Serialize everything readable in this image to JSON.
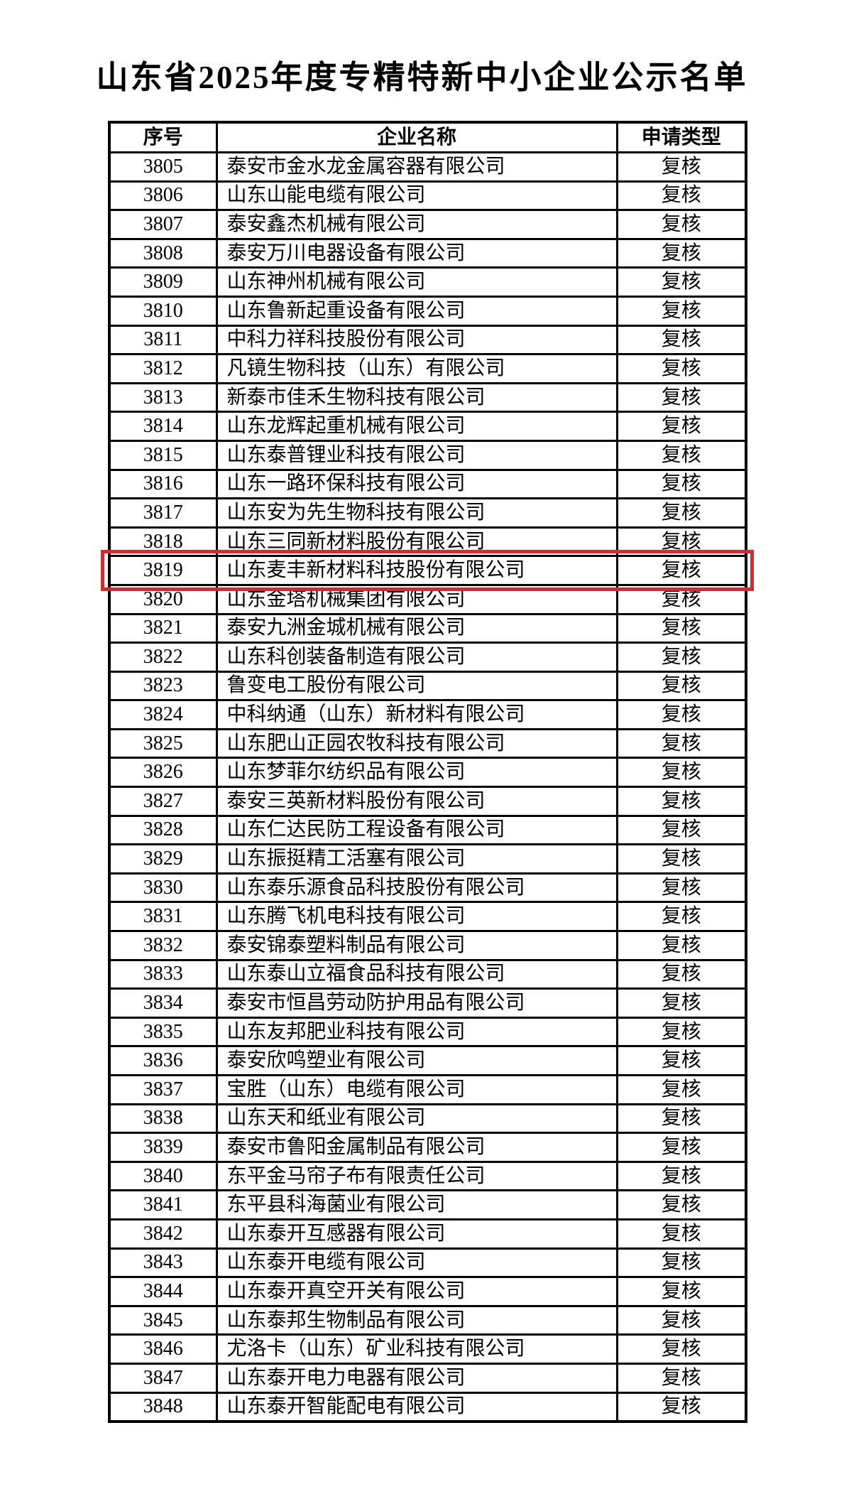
{
  "title": "山东省2025年度专精特新中小企业公示名单",
  "table": {
    "headers": {
      "no": "序号",
      "name": "企业名称",
      "type": "申请类型"
    },
    "rows": [
      {
        "no": "3805",
        "name": "泰安市金水龙金属容器有限公司",
        "type": "复核"
      },
      {
        "no": "3806",
        "name": "山东山能电缆有限公司",
        "type": "复核"
      },
      {
        "no": "3807",
        "name": "泰安鑫杰机械有限公司",
        "type": "复核"
      },
      {
        "no": "3808",
        "name": "泰安万川电器设备有限公司",
        "type": "复核"
      },
      {
        "no": "3809",
        "name": "山东神州机械有限公司",
        "type": "复核"
      },
      {
        "no": "3810",
        "name": "山东鲁新起重设备有限公司",
        "type": "复核"
      },
      {
        "no": "3811",
        "name": "中科力祥科技股份有限公司",
        "type": "复核"
      },
      {
        "no": "3812",
        "name": "凡镜生物科技（山东）有限公司",
        "type": "复核"
      },
      {
        "no": "3813",
        "name": "新泰市佳禾生物科技有限公司",
        "type": "复核"
      },
      {
        "no": "3814",
        "name": "山东龙辉起重机械有限公司",
        "type": "复核"
      },
      {
        "no": "3815",
        "name": "山东泰普锂业科技有限公司",
        "type": "复核"
      },
      {
        "no": "3816",
        "name": "山东一路环保科技有限公司",
        "type": "复核"
      },
      {
        "no": "3817",
        "name": "山东安为先生物科技有限公司",
        "type": "复核"
      },
      {
        "no": "3818",
        "name": "山东三同新材料股份有限公司",
        "type": "复核"
      },
      {
        "no": "3819",
        "name": "山东麦丰新材料科技股份有限公司",
        "type": "复核"
      },
      {
        "no": "3820",
        "name": "山东金塔机械集团有限公司",
        "type": "复核"
      },
      {
        "no": "3821",
        "name": "泰安九洲金城机械有限公司",
        "type": "复核"
      },
      {
        "no": "3822",
        "name": "山东科创装备制造有限公司",
        "type": "复核"
      },
      {
        "no": "3823",
        "name": "鲁变电工股份有限公司",
        "type": "复核"
      },
      {
        "no": "3824",
        "name": "中科纳通（山东）新材料有限公司",
        "type": "复核"
      },
      {
        "no": "3825",
        "name": "山东肥山正园农牧科技有限公司",
        "type": "复核"
      },
      {
        "no": "3826",
        "name": "山东梦菲尔纺织品有限公司",
        "type": "复核"
      },
      {
        "no": "3827",
        "name": "泰安三英新材料股份有限公司",
        "type": "复核"
      },
      {
        "no": "3828",
        "name": "山东仁达民防工程设备有限公司",
        "type": "复核"
      },
      {
        "no": "3829",
        "name": "山东振挺精工活塞有限公司",
        "type": "复核"
      },
      {
        "no": "3830",
        "name": "山东泰乐源食品科技股份有限公司",
        "type": "复核"
      },
      {
        "no": "3831",
        "name": "山东腾飞机电科技有限公司",
        "type": "复核"
      },
      {
        "no": "3832",
        "name": "泰安锦泰塑料制品有限公司",
        "type": "复核"
      },
      {
        "no": "3833",
        "name": "山东泰山立福食品科技有限公司",
        "type": "复核"
      },
      {
        "no": "3834",
        "name": "泰安市恒昌劳动防护用品有限公司",
        "type": "复核"
      },
      {
        "no": "3835",
        "name": "山东友邦肥业科技有限公司",
        "type": "复核"
      },
      {
        "no": "3836",
        "name": "泰安欣鸣塑业有限公司",
        "type": "复核"
      },
      {
        "no": "3837",
        "name": "宝胜（山东）电缆有限公司",
        "type": "复核"
      },
      {
        "no": "3838",
        "name": "山东天和纸业有限公司",
        "type": "复核"
      },
      {
        "no": "3839",
        "name": "泰安市鲁阳金属制品有限公司",
        "type": "复核"
      },
      {
        "no": "3840",
        "name": "东平金马帘子布有限责任公司",
        "type": "复核"
      },
      {
        "no": "3841",
        "name": "东平县科海菌业有限公司",
        "type": "复核"
      },
      {
        "no": "3842",
        "name": "山东泰开互感器有限公司",
        "type": "复核"
      },
      {
        "no": "3843",
        "name": "山东泰开电缆有限公司",
        "type": "复核"
      },
      {
        "no": "3844",
        "name": "山东泰开真空开关有限公司",
        "type": "复核"
      },
      {
        "no": "3845",
        "name": "山东泰邦生物制品有限公司",
        "type": "复核"
      },
      {
        "no": "3846",
        "name": "尤洛卡（山东）矿业科技有限公司",
        "type": "复核"
      },
      {
        "no": "3847",
        "name": "山东泰开电力电器有限公司",
        "type": "复核"
      },
      {
        "no": "3848",
        "name": "山东泰开智能配电有限公司",
        "type": "复核"
      }
    ]
  },
  "highlight": {
    "row_no": "3819",
    "border_color": "#d9282e"
  }
}
